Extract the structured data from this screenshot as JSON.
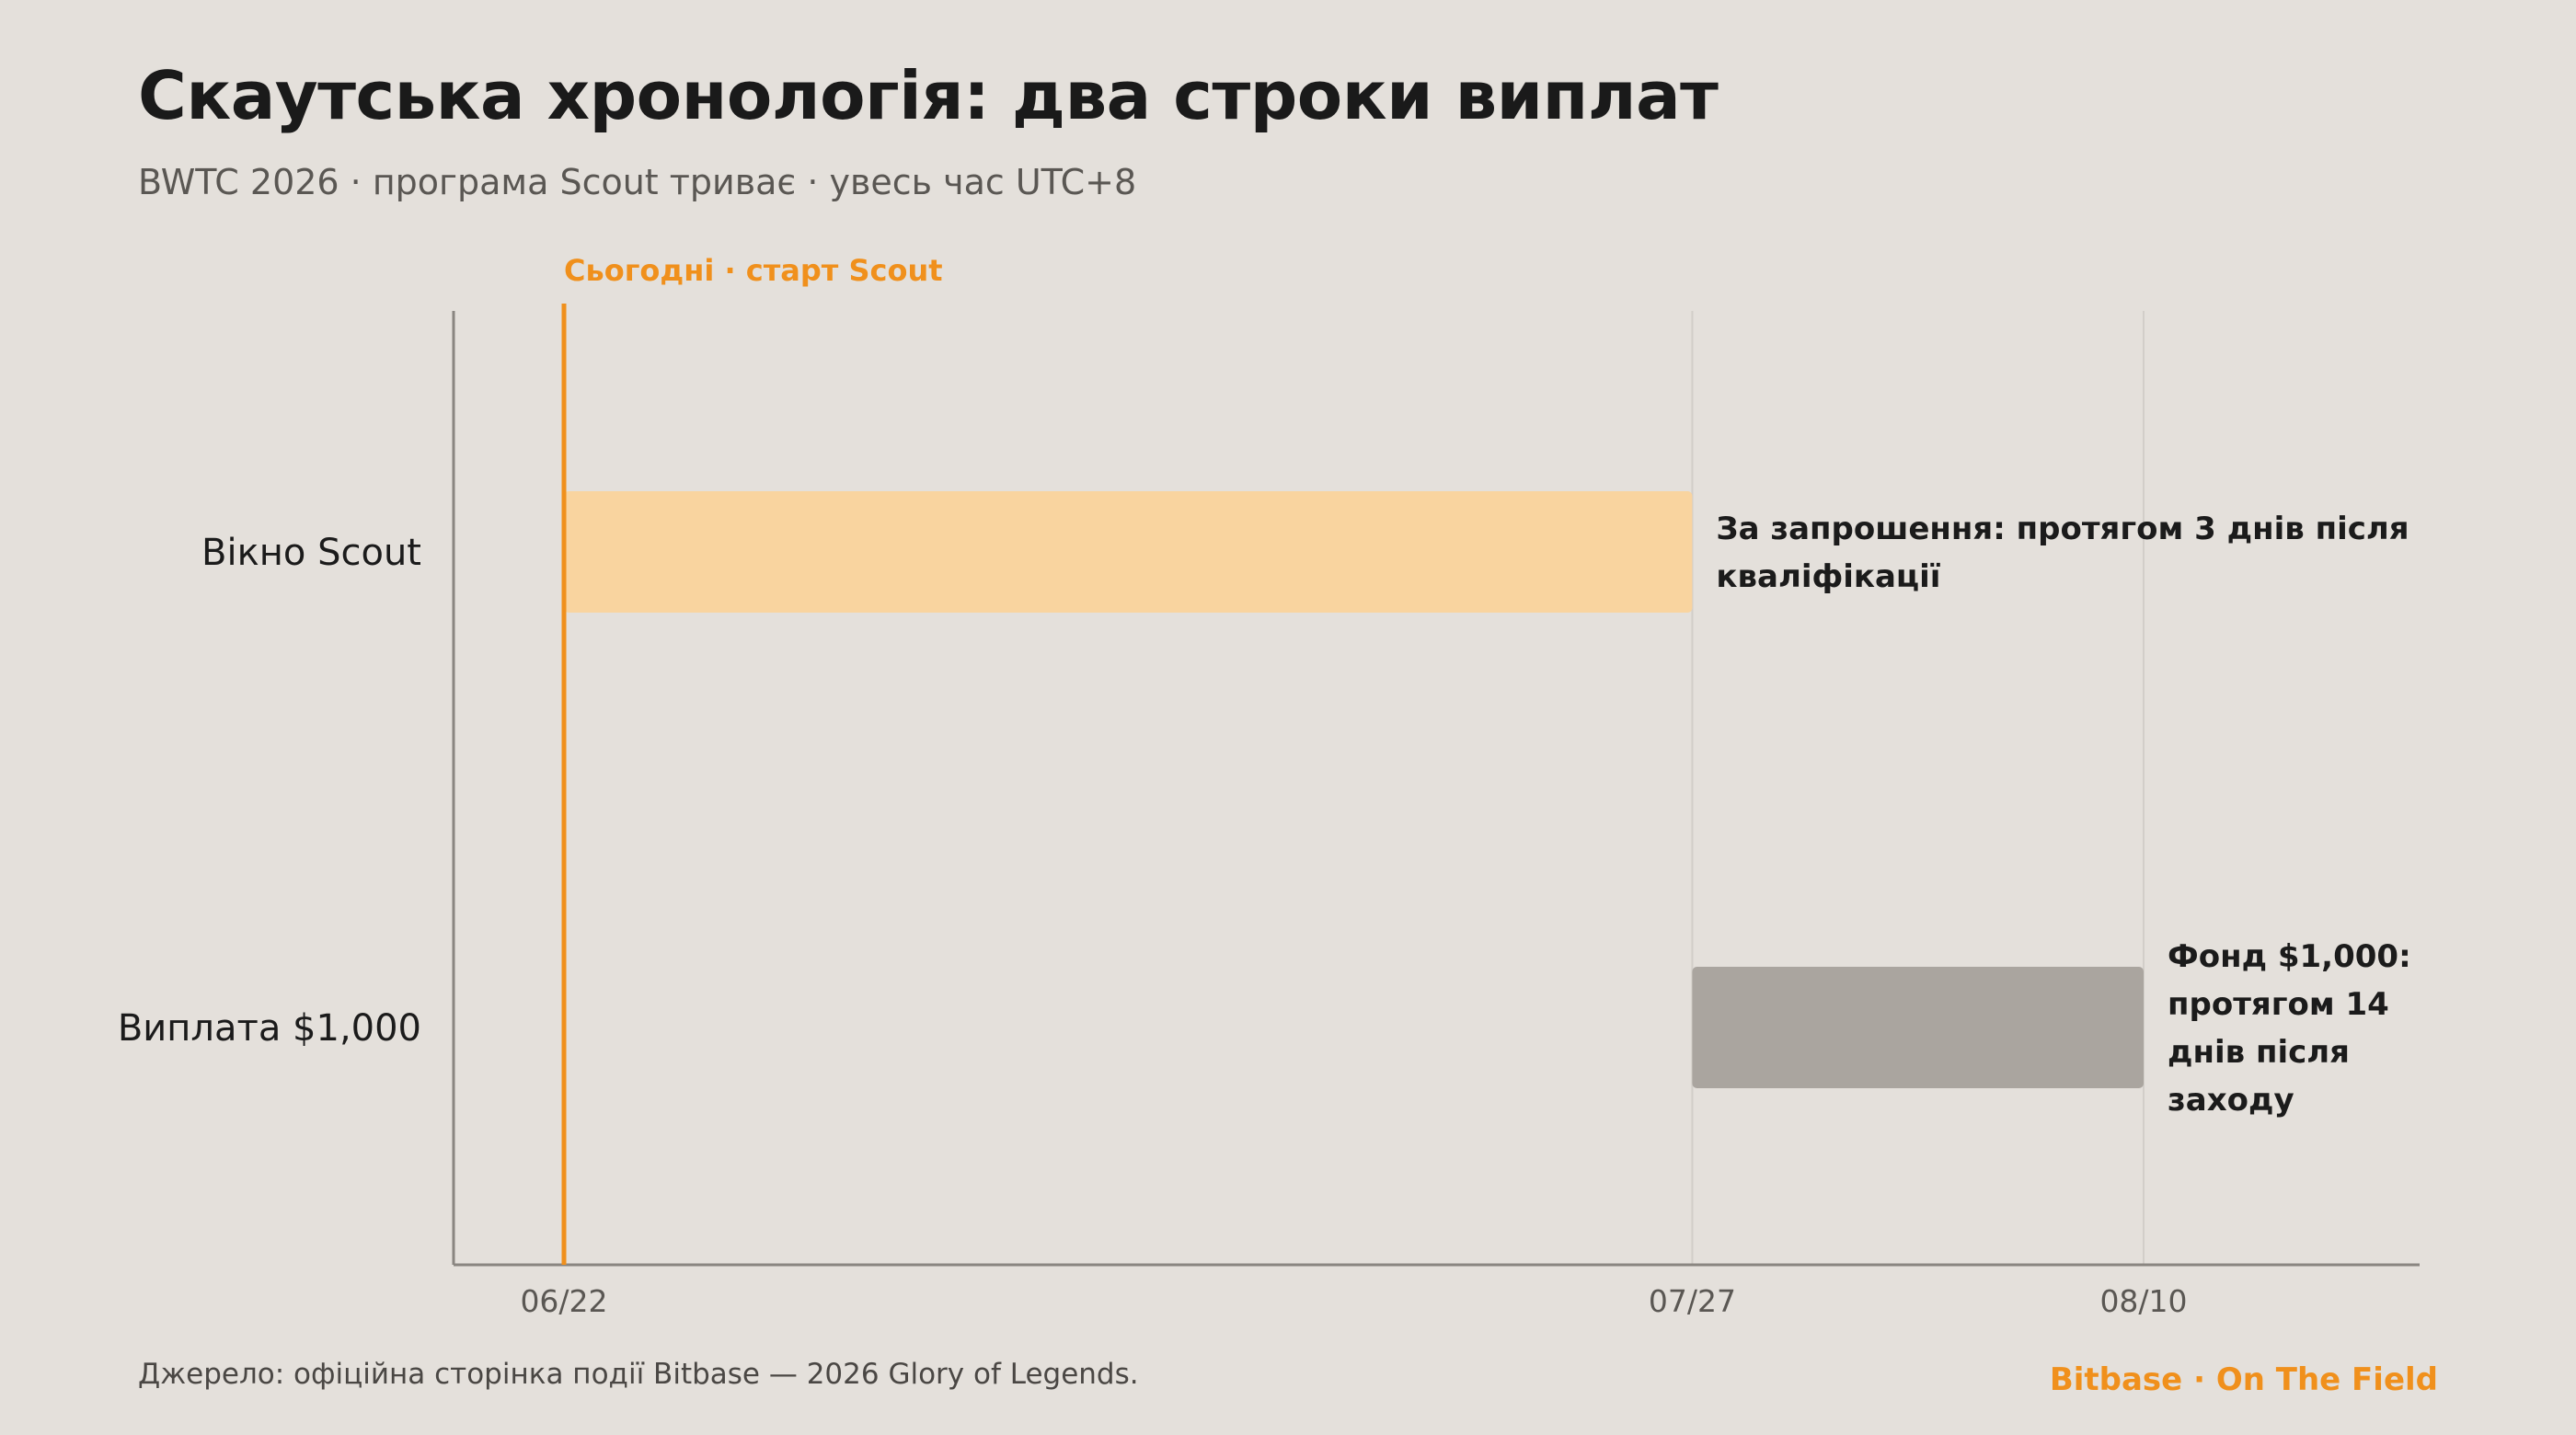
{
  "title": "Скаутська хронологія: два строки виплат",
  "subtitle": "BWTC 2026 · програма Scout триває · увесь час UTC+8",
  "footer": {
    "source": "Джерело: офіційна сторінка події Bitbase — 2026 Glory of Legends.",
    "brand": "Bitbase · On The Field"
  },
  "colors": {
    "background": "#e4e0db",
    "accent": "#f0901c",
    "scout_bar": "#f9d49f",
    "payout_bar": "#aaa59f",
    "axis": "#8a8681",
    "gridline": "#d2cec9"
  },
  "chart_data": {
    "type": "timeline",
    "x_ticks": [
      "06/22",
      "07/27",
      "08/10"
    ],
    "x_range": [
      "06/22",
      "08/10"
    ],
    "today": {
      "date": "06/22",
      "label": "Сьогодні · старт Scout"
    },
    "rows": [
      {
        "category": "Вікно Scout",
        "start": "06/22",
        "end": "07/27",
        "note_lines": [
          "За запрошення: протягом 3 днів після",
          "кваліфікації"
        ],
        "color": "#f9d49f"
      },
      {
        "category": "Виплата $1,000",
        "start": "07/27",
        "end": "08/10",
        "note_lines": [
          "Фонд $1,000:",
          "протягом 14",
          "днів після",
          "заходу"
        ],
        "color": "#aaa59f"
      }
    ],
    "gridlines_at": [
      "07/27",
      "08/10"
    ]
  }
}
